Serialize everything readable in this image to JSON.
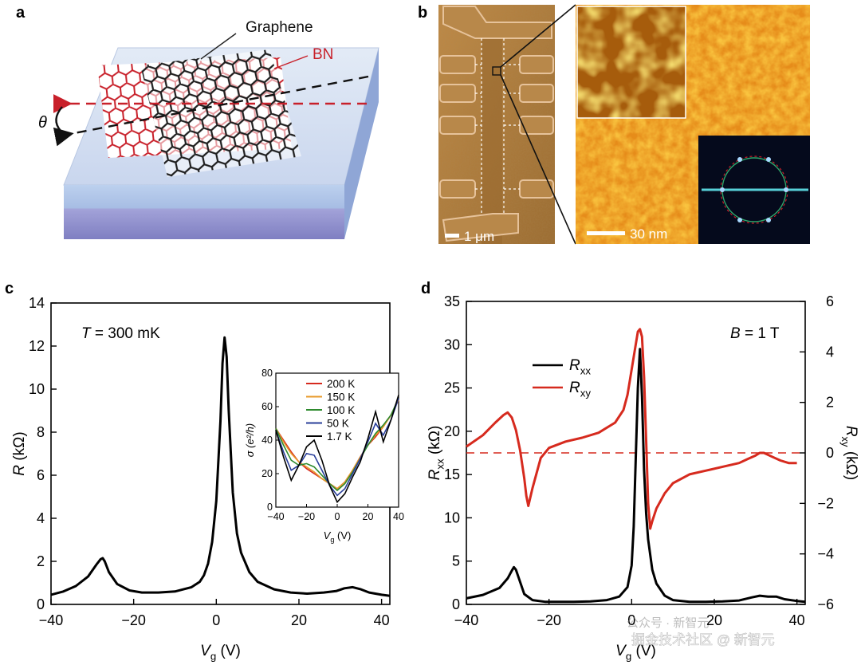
{
  "panel_labels": {
    "a": "a",
    "b": "b",
    "c": "c",
    "d": "d"
  },
  "panel_a": {
    "graphene_label": "Graphene",
    "bn_label": "BN",
    "angle_label": "θ",
    "colors": {
      "graphene": "#222222",
      "bn": "#c8202a",
      "substrate_top": "#dce6f4",
      "substrate_side": "#9a9ad0"
    }
  },
  "panel_b": {
    "scale_left": "1 μm",
    "scale_right": "30 nm",
    "colors": {
      "afm_left": "#b07a3a",
      "stm": "#e08a18",
      "fft_bg": "#050a1c"
    }
  },
  "chart_data": [
    {
      "type": "line",
      "panel": "c",
      "annotation": "T = 300 mK",
      "xlabel": "V",
      "xlabel_sub": "g",
      "xlabel_unit": "(V)",
      "ylabel": "R",
      "ylabel_unit": "(kΩ)",
      "xlim": [
        -40,
        42
      ],
      "ylim": [
        0,
        14
      ],
      "xticks": [
        -40,
        -20,
        0,
        20,
        40
      ],
      "yticks": [
        0,
        2,
        4,
        6,
        8,
        10,
        12,
        14
      ],
      "series": [
        {
          "color": "#000000",
          "x": [
            -40,
            -37,
            -34,
            -31,
            -29,
            -28,
            -27.5,
            -27,
            -26,
            -24,
            -21,
            -18,
            -14,
            -10,
            -6,
            -4,
            -3,
            -2,
            -1,
            0,
            1,
            1.5,
            2,
            2.5,
            3,
            4,
            5,
            6,
            8,
            10,
            14,
            18,
            22,
            26,
            29,
            31,
            33,
            35,
            37,
            40,
            42
          ],
          "y": [
            0.45,
            0.6,
            0.85,
            1.3,
            1.85,
            2.1,
            2.15,
            2.0,
            1.5,
            0.95,
            0.65,
            0.55,
            0.55,
            0.6,
            0.8,
            1.05,
            1.35,
            1.9,
            2.9,
            4.8,
            8.5,
            11.2,
            12.4,
            11.5,
            9.0,
            5.2,
            3.3,
            2.4,
            1.5,
            1.05,
            0.7,
            0.55,
            0.5,
            0.55,
            0.62,
            0.75,
            0.8,
            0.7,
            0.55,
            0.45,
            0.4
          ]
        }
      ]
    },
    {
      "type": "line",
      "panel": "c-inset",
      "xlabel": "V",
      "xlabel_sub": "g",
      "xlabel_unit": "(V)",
      "ylabel": "σ (e²/h)",
      "xlim": [
        -40,
        40
      ],
      "ylim": [
        0,
        80
      ],
      "xticks": [
        -40,
        -20,
        0,
        20,
        40
      ],
      "yticks": [
        0,
        20,
        40,
        60,
        80
      ],
      "x": [
        -40,
        -35,
        -30,
        -25,
        -20,
        -15,
        -10,
        -5,
        0,
        5,
        10,
        15,
        20,
        25,
        30,
        35,
        40
      ],
      "series": [
        {
          "name": "200 K",
          "color": "#d62a1e",
          "values": [
            47,
            40,
            33,
            27,
            23,
            20,
            17,
            14,
            11,
            15,
            22,
            30,
            37,
            42,
            48,
            55,
            64
          ]
        },
        {
          "name": "150 K",
          "color": "#e89a2a",
          "values": [
            47,
            39,
            32,
            27,
            24,
            21,
            17,
            14,
            11,
            15,
            22,
            30,
            37,
            43,
            48,
            55,
            64
          ]
        },
        {
          "name": "100 K",
          "color": "#2e8a2e",
          "values": [
            47,
            37,
            28,
            25,
            26,
            24,
            19,
            14,
            10,
            14,
            21,
            29,
            37,
            44,
            49,
            55,
            65
          ]
        },
        {
          "name": "50 K",
          "color": "#2a3f9a",
          "values": [
            46,
            33,
            22,
            25,
            32,
            31,
            22,
            13,
            7,
            11,
            20,
            29,
            39,
            50,
            43,
            52,
            65
          ]
        },
        {
          "name": "1.7 K",
          "color": "#000000",
          "values": [
            46,
            30,
            16,
            25,
            36,
            40,
            28,
            13,
            3,
            8,
            18,
            27,
            41,
            57,
            39,
            52,
            67
          ]
        }
      ]
    },
    {
      "type": "line",
      "panel": "d",
      "annotation": "B = 1 T",
      "xlabel": "V",
      "xlabel_sub": "g",
      "xlabel_unit": "(V)",
      "ylabel": "R",
      "ylabel_sub": "xx",
      "ylabel_unit": "(kΩ)",
      "y2label": "R",
      "y2label_sub": "xy",
      "y2label_unit": "(kΩ)",
      "xlim": [
        -40,
        42
      ],
      "ylim": [
        0,
        35
      ],
      "y2lim": [
        -6,
        6
      ],
      "xticks": [
        -40,
        -20,
        0,
        20,
        40
      ],
      "yticks": [
        0,
        5,
        10,
        15,
        20,
        25,
        30,
        35
      ],
      "y2ticks": [
        -6,
        -4,
        -2,
        0,
        2,
        4,
        6
      ],
      "series": [
        {
          "name": "R",
          "sub": "xx",
          "color": "#000000",
          "axis": "left",
          "x": [
            -40,
            -36,
            -32,
            -30,
            -29,
            -28.5,
            -28,
            -27,
            -26,
            -24,
            -21,
            -18,
            -14,
            -10,
            -6,
            -3,
            -1,
            0,
            0.5,
            1,
            1.5,
            2,
            2.5,
            3,
            3.5,
            4,
            5,
            6,
            8,
            10,
            14,
            18,
            22,
            26,
            29,
            31,
            33,
            35,
            37,
            40,
            42
          ],
          "y": [
            0.7,
            1.1,
            1.9,
            3.0,
            3.9,
            4.3,
            4.0,
            2.6,
            1.2,
            0.5,
            0.3,
            0.3,
            0.3,
            0.35,
            0.5,
            0.9,
            2.0,
            4.5,
            9.0,
            17.0,
            25.0,
            29.5,
            24.0,
            15.5,
            10.5,
            7.5,
            4.0,
            2.4,
            1.0,
            0.5,
            0.3,
            0.3,
            0.35,
            0.45,
            0.8,
            1.0,
            0.9,
            0.9,
            0.6,
            0.4,
            0.3
          ]
        },
        {
          "name": "R",
          "sub": "xy",
          "color": "#d62a1e",
          "axis": "right",
          "x": [
            -40,
            -36,
            -33,
            -31,
            -30,
            -29,
            -28,
            -27,
            -26,
            -25.5,
            -25,
            -24,
            -22,
            -20,
            -16,
            -12,
            -8,
            -4,
            -2,
            -1,
            0,
            1,
            1.5,
            2,
            2.5,
            3,
            3.5,
            4,
            4.5,
            5,
            6,
            8,
            10,
            14,
            18,
            22,
            26,
            28,
            30,
            31,
            32,
            34,
            36,
            38,
            40
          ],
          "y": [
            0.25,
            0.7,
            1.2,
            1.5,
            1.6,
            1.4,
            0.9,
            0.1,
            -1.0,
            -1.7,
            -2.1,
            -1.4,
            -0.2,
            0.2,
            0.45,
            0.6,
            0.8,
            1.2,
            1.7,
            2.3,
            3.3,
            4.3,
            4.8,
            4.9,
            4.6,
            3.0,
            0.5,
            -2.0,
            -3.0,
            -2.7,
            -2.2,
            -1.6,
            -1.2,
            -0.85,
            -0.7,
            -0.55,
            -0.4,
            -0.25,
            -0.1,
            0.0,
            0.0,
            -0.15,
            -0.3,
            -0.4,
            -0.4
          ]
        }
      ],
      "reference_line": {
        "axis": "right",
        "value": 0,
        "style": "dashed",
        "color": "#d62a1e"
      }
    }
  ],
  "watermark": {
    "line1": "公众号 · 新智元",
    "line2": "掘金技术社区 @ 新智元"
  }
}
